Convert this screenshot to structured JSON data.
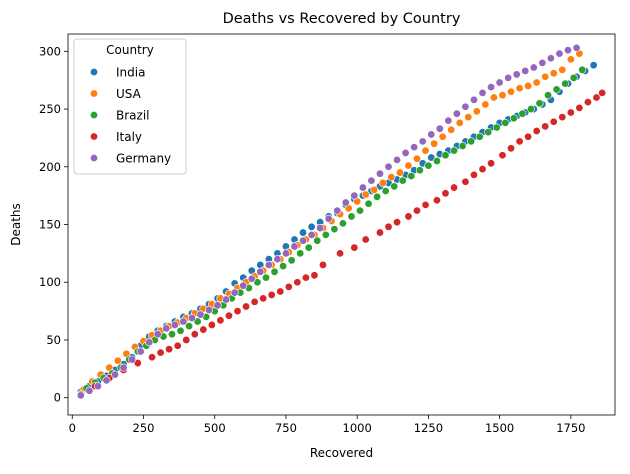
{
  "chart_data": {
    "type": "scatter",
    "title": "Deaths vs Recovered by Country",
    "xlabel": "Recovered",
    "ylabel": "Deaths",
    "xlim": [
      -15,
      1905
    ],
    "ylim": [
      -15,
      315
    ],
    "xticks": [
      0,
      250,
      500,
      750,
      1000,
      1250,
      1500,
      1750
    ],
    "yticks": [
      0,
      50,
      100,
      150,
      200,
      250,
      300
    ],
    "grid": false,
    "legend": {
      "title": "Country",
      "placement": "upper left"
    },
    "series": [
      {
        "name": "India",
        "color": "#1f77b4",
        "x": [
          30,
          60,
          90,
          120,
          150,
          180,
          210,
          240,
          270,
          300,
          330,
          360,
          390,
          420,
          450,
          480,
          510,
          540,
          570,
          600,
          630,
          660,
          690,
          720,
          750,
          780,
          810,
          840,
          870,
          900,
          930,
          960,
          990,
          1020,
          1050,
          1080,
          1110,
          1140,
          1170,
          1200,
          1230,
          1260,
          1290,
          1320,
          1350,
          1380,
          1410,
          1440,
          1470,
          1500,
          1530,
          1560,
          1590,
          1620,
          1650,
          1680,
          1710,
          1740,
          1770,
          1800,
          1830
        ],
        "y": [
          5,
          10,
          14,
          19,
          24,
          29,
          35,
          45,
          53,
          58,
          62,
          66,
          70,
          73,
          77,
          81,
          86,
          92,
          99,
          104,
          110,
          115,
          120,
          125,
          131,
          137,
          143,
          148,
          152,
          157,
          160,
          167,
          172,
          175,
          179,
          183,
          186,
          189,
          193,
          197,
          203,
          208,
          211,
          214,
          218,
          222,
          226,
          230,
          234,
          238,
          241,
          244,
          247,
          250,
          254,
          258,
          265,
          272,
          278,
          283,
          288
        ]
      },
      {
        "name": "USA",
        "color": "#ff7f0e",
        "x": [
          40,
          70,
          100,
          130,
          160,
          190,
          220,
          250,
          280,
          310,
          340,
          370,
          400,
          430,
          460,
          490,
          520,
          550,
          580,
          610,
          640,
          670,
          700,
          730,
          760,
          790,
          820,
          850,
          880,
          910,
          940,
          970,
          1000,
          1030,
          1060,
          1090,
          1120,
          1150,
          1180,
          1210,
          1240,
          1270,
          1300,
          1330,
          1360,
          1390,
          1420,
          1450,
          1480,
          1510,
          1540,
          1570,
          1600,
          1630,
          1660,
          1690,
          1720,
          1750,
          1780
        ],
        "y": [
          7,
          14,
          20,
          26,
          32,
          38,
          44,
          49,
          54,
          58,
          62,
          65,
          69,
          73,
          77,
          81,
          86,
          90,
          95,
          100,
          105,
          110,
          115,
          120,
          126,
          132,
          137,
          141,
          147,
          153,
          159,
          164,
          170,
          176,
          180,
          186,
          191,
          195,
          201,
          207,
          214,
          220,
          226,
          232,
          238,
          243,
          248,
          254,
          260,
          262,
          265,
          268,
          270,
          273,
          278,
          281,
          284,
          293,
          298
        ]
      },
      {
        "name": "Brazil",
        "color": "#2ca02c",
        "x": [
          50,
          80,
          110,
          140,
          170,
          200,
          230,
          260,
          290,
          320,
          350,
          380,
          410,
          440,
          470,
          500,
          530,
          560,
          590,
          620,
          650,
          680,
          710,
          740,
          770,
          800,
          830,
          860,
          890,
          920,
          950,
          980,
          1010,
          1040,
          1070,
          1100,
          1130,
          1160,
          1190,
          1220,
          1250,
          1280,
          1310,
          1340,
          1370,
          1400,
          1430,
          1460,
          1490,
          1520,
          1550,
          1580,
          1610,
          1640,
          1670,
          1700,
          1730,
          1760,
          1790
        ],
        "y": [
          8,
          13,
          17,
          21,
          26,
          33,
          40,
          45,
          50,
          53,
          55,
          58,
          62,
          66,
          70,
          75,
          80,
          86,
          91,
          95,
          100,
          104,
          109,
          114,
          119,
          125,
          130,
          136,
          141,
          146,
          151,
          157,
          162,
          168,
          174,
          179,
          183,
          188,
          192,
          197,
          201,
          205,
          210,
          214,
          218,
          222,
          226,
          230,
          234,
          238,
          242,
          246,
          250,
          255,
          262,
          267,
          272,
          277,
          284
        ]
      },
      {
        "name": "Italy",
        "color": "#d62728",
        "x": [
          30,
          80,
          130,
          180,
          230,
          280,
          310,
          340,
          370,
          400,
          430,
          460,
          490,
          520,
          550,
          580,
          610,
          640,
          670,
          700,
          730,
          760,
          790,
          820,
          850,
          880,
          940,
          990,
          1030,
          1080,
          1110,
          1140,
          1180,
          1210,
          1240,
          1280,
          1310,
          1340,
          1380,
          1410,
          1440,
          1470,
          1510,
          1540,
          1570,
          1600,
          1630,
          1660,
          1690,
          1720,
          1750,
          1780,
          1810,
          1840,
          1860
        ],
        "y": [
          3,
          10,
          17,
          24,
          30,
          35,
          39,
          42,
          45,
          50,
          55,
          59,
          63,
          67,
          71,
          75,
          79,
          83,
          86,
          89,
          92,
          96,
          100,
          104,
          106,
          115,
          125,
          130,
          137,
          143,
          148,
          152,
          157,
          162,
          167,
          171,
          177,
          182,
          187,
          193,
          198,
          203,
          210,
          216,
          222,
          226,
          231,
          235,
          239,
          243,
          247,
          251,
          256,
          260,
          264
        ]
      },
      {
        "name": "Germany",
        "color": "#9467bd",
        "x": [
          30,
          60,
          90,
          120,
          150,
          180,
          210,
          240,
          270,
          300,
          330,
          360,
          390,
          420,
          450,
          480,
          510,
          540,
          570,
          600,
          630,
          660,
          690,
          720,
          750,
          780,
          810,
          840,
          870,
          900,
          930,
          960,
          990,
          1020,
          1050,
          1080,
          1110,
          1140,
          1170,
          1200,
          1230,
          1260,
          1290,
          1320,
          1350,
          1380,
          1410,
          1440,
          1470,
          1500,
          1530,
          1560,
          1590,
          1620,
          1650,
          1680,
          1710,
          1740,
          1770
        ],
        "y": [
          2,
          6,
          10,
          15,
          20,
          26,
          33,
          40,
          48,
          55,
          60,
          63,
          66,
          69,
          72,
          76,
          80,
          85,
          91,
          97,
          103,
          109,
          115,
          120,
          125,
          131,
          136,
          141,
          147,
          155,
          162,
          169,
          175,
          182,
          188,
          194,
          200,
          206,
          212,
          217,
          222,
          228,
          233,
          240,
          246,
          252,
          258,
          264,
          269,
          273,
          277,
          280,
          283,
          286,
          290,
          294,
          298,
          301,
          303
        ]
      }
    ]
  }
}
